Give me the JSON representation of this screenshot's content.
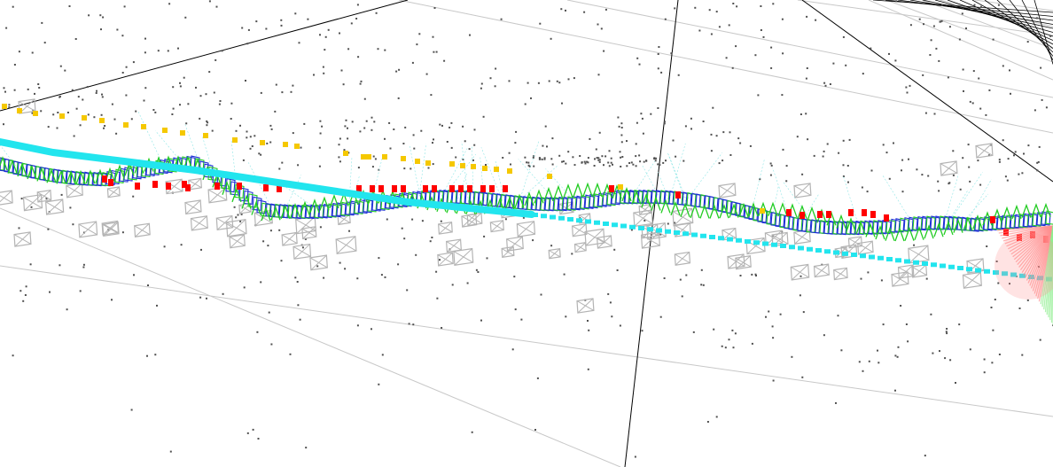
{
  "viewer": {
    "background_color": "#ffffff",
    "colors": {
      "grid_line": "#c8c8c8",
      "axis_line": "#000000",
      "point_cloud": "#505050",
      "keyframe_camera": "#b4b4b4",
      "trajectory_blue": "#1e2fd6",
      "trajectory_green": "#22cc22",
      "current_map_points_red": "#ff0000",
      "reference_points_yellow": "#f5c800",
      "estimated_path_cyan": "#22e5ee",
      "covisibility_edge": "#8fe6e6",
      "current_camera_fov_red": "#ff9090",
      "current_camera_fov_green": "#90ee90"
    },
    "layers": [
      {
        "name": "ground-grid",
        "icon": "grid-lines"
      },
      {
        "name": "world-axes",
        "icon": "axis-lines"
      },
      {
        "name": "map-point-cloud",
        "icon": "points"
      },
      {
        "name": "keyframe-cameras",
        "icon": "camera-frustum"
      },
      {
        "name": "camera-trajectory",
        "icon": "frustum-chain"
      },
      {
        "name": "local-map-points",
        "icon": "red-points"
      },
      {
        "name": "reference-points",
        "icon": "yellow-points"
      },
      {
        "name": "estimated-path",
        "icon": "cyan-path"
      },
      {
        "name": "current-camera",
        "icon": "fov-cone"
      }
    ]
  }
}
